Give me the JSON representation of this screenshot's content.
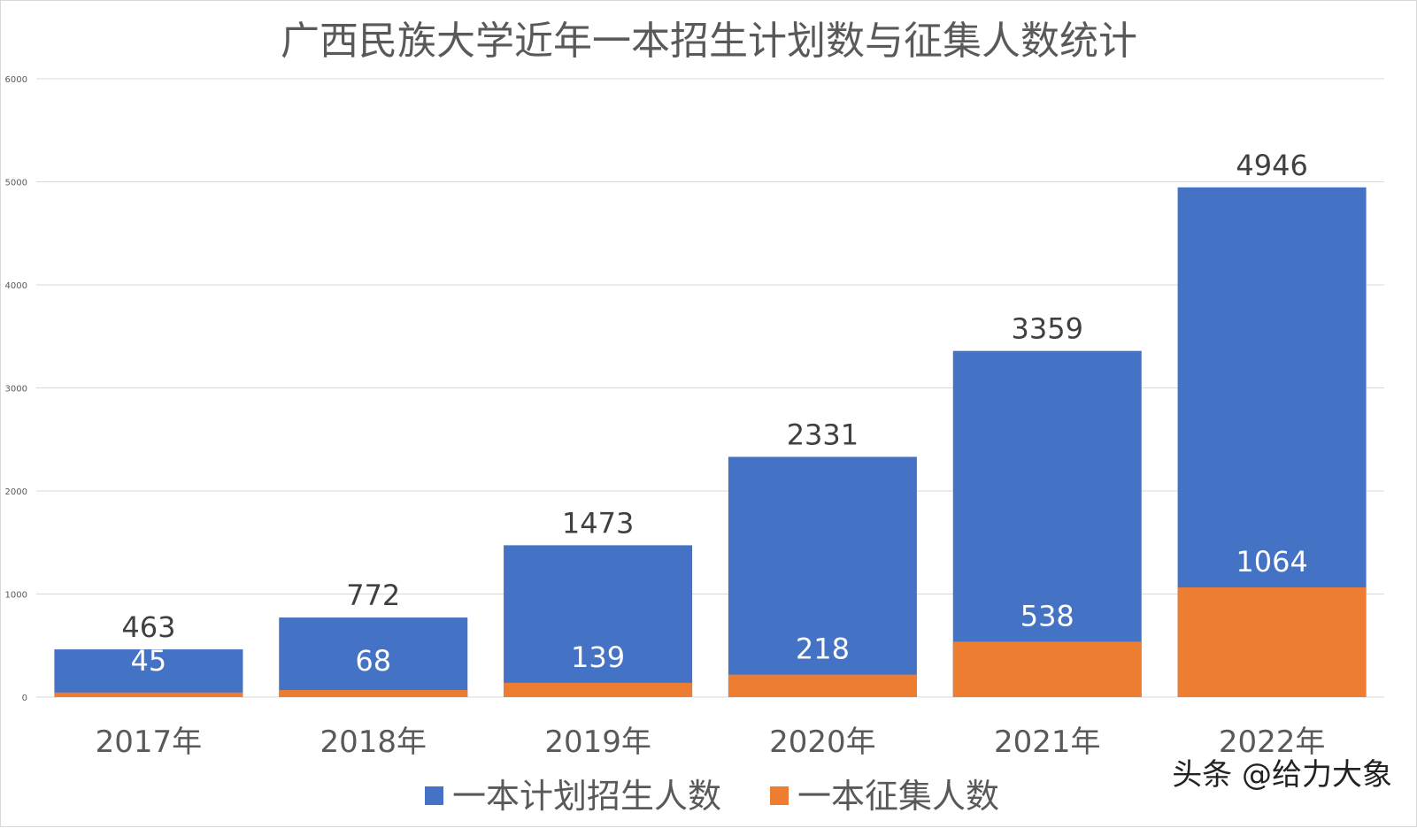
{
  "chart_data": {
    "type": "bar",
    "stacked": false,
    "overlap": true,
    "title": "广西民族大学近年一本招生计划数与征集人数统计",
    "categories": [
      "2017年",
      "2018年",
      "2019年",
      "2020年",
      "2021年",
      "2022年"
    ],
    "series": [
      {
        "name": "一本计划招生人数",
        "color": "#4472C4",
        "values": [
          463,
          772,
          1473,
          2331,
          3359,
          4946
        ]
      },
      {
        "name": "一本征集人数",
        "color": "#ED7D31",
        "values": [
          45,
          68,
          139,
          218,
          538,
          1064
        ]
      }
    ],
    "ylim": [
      0,
      6000
    ],
    "yticks": [
      "0",
      "1000",
      "2000",
      "3000",
      "4000",
      "5000",
      "6000"
    ],
    "grid": true,
    "legend_position": "bottom",
    "watermark": "头条 @给力大象"
  }
}
